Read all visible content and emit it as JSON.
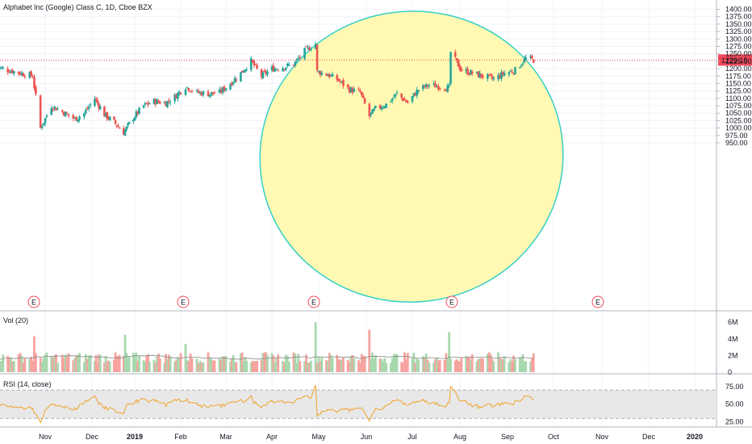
{
  "chart_data": {
    "type": "candlestick",
    "title": "Alphabet Inc (Google) Class C, 1D, Cboe BZX",
    "price_axis": {
      "ticks": [
        950,
        975,
        1000,
        1025,
        1050,
        1075,
        1100,
        1125,
        1150,
        1175,
        1200,
        1225,
        1250,
        1275,
        1300,
        1325,
        1350,
        1375,
        1400
      ],
      "tick_labels": [
        "950.00",
        "975.00",
        "1000.00",
        "1025.00",
        "1050.00",
        "1075.00",
        "1100.00",
        "1125.00",
        "1150.00",
        "1175.00",
        "1200.00",
        "1225.00",
        "1250.00",
        "1275.00",
        "1300.00",
        "1325.00",
        "1350.00",
        "1375.00",
        "1400.00"
      ]
    },
    "last_price": 1229.15,
    "last_price_label": "1229.15",
    "x_axis": {
      "labels": [
        "Nov",
        "Dec",
        "2019",
        "Feb",
        "Mar",
        "Apr",
        "May",
        "Jun",
        "Jul",
        "Aug",
        "Sep",
        "Oct",
        "Nov",
        "Dec",
        "2020"
      ],
      "bold": [
        "2019",
        "2020"
      ]
    },
    "earnings_marker": "E",
    "earnings_months": [
      "Oct 2018",
      "Feb 2019",
      "Apr 2019",
      "Jul 2019",
      "Oct 2019"
    ],
    "close_anchors": [
      [
        "2018-10-24",
        1175
      ],
      [
        "2018-10-29",
        1000
      ],
      [
        "2018-11-05",
        1075
      ],
      [
        "2018-11-12",
        1055
      ],
      [
        "2018-11-20",
        1030
      ],
      [
        "2018-11-26",
        1050
      ],
      [
        "2018-12-03",
        1100
      ],
      [
        "2018-12-10",
        1045
      ],
      [
        "2018-12-17",
        1020
      ],
      [
        "2018-12-24",
        985
      ],
      [
        "2018-12-31",
        1035
      ],
      [
        "2019-01-07",
        1075
      ],
      [
        "2019-01-14",
        1090
      ],
      [
        "2019-01-22",
        1085
      ],
      [
        "2019-01-28",
        1105
      ],
      [
        "2019-02-04",
        1140
      ],
      [
        "2019-02-11",
        1120
      ],
      [
        "2019-02-19",
        1115
      ],
      [
        "2019-02-25",
        1120
      ],
      [
        "2019-03-04",
        1150
      ],
      [
        "2019-03-11",
        1185
      ],
      [
        "2019-03-18",
        1225
      ],
      [
        "2019-03-25",
        1175
      ],
      [
        "2019-04-01",
        1200
      ],
      [
        "2019-04-08",
        1205
      ],
      [
        "2019-04-15",
        1215
      ],
      [
        "2019-04-22",
        1260
      ],
      [
        "2019-04-29",
        1285
      ],
      [
        "2019-04-30",
        1190
      ],
      [
        "2019-05-07",
        1180
      ],
      [
        "2019-05-14",
        1160
      ],
      [
        "2019-05-21",
        1130
      ],
      [
        "2019-05-28",
        1120
      ],
      [
        "2019-06-03",
        1040
      ],
      [
        "2019-06-07",
        1065
      ],
      [
        "2019-06-14",
        1080
      ],
      [
        "2019-06-21",
        1115
      ],
      [
        "2019-06-28",
        1085
      ],
      [
        "2019-07-05",
        1130
      ],
      [
        "2019-07-12",
        1145
      ],
      [
        "2019-07-19",
        1140
      ],
      [
        "2019-07-25",
        1135
      ],
      [
        "2019-07-26",
        1255
      ],
      [
        "2019-08-02",
        1195
      ],
      [
        "2019-08-09",
        1185
      ],
      [
        "2019-08-16",
        1175
      ],
      [
        "2019-08-23",
        1165
      ],
      [
        "2019-08-30",
        1185
      ],
      [
        "2019-09-06",
        1195
      ],
      [
        "2019-09-13",
        1235
      ],
      [
        "2019-09-18",
        1229
      ]
    ],
    "volume": {
      "label": "Vol (20)",
      "ticks": [
        "0",
        "2M",
        "4M",
        "6M"
      ],
      "spikes": [
        [
          "2019-04-30",
          6.0
        ],
        [
          "2019-06-03",
          5.1
        ],
        [
          "2019-07-26",
          4.8
        ],
        [
          "2018-12-26",
          4.5
        ],
        [
          "2019-02-05",
          3.4
        ],
        [
          "2018-10-26",
          4.3
        ]
      ]
    },
    "rsi": {
      "label": "RSI (14, close)",
      "ticks": [
        "25.00",
        "50.00",
        "75.00"
      ],
      "band": [
        30,
        70
      ],
      "range": [
        20,
        85
      ]
    },
    "colors": {
      "up": "#26a69a",
      "down": "#ef5350",
      "up_fill": "#a8d8ae",
      "down_fill": "#f7a39f",
      "ellipse_fill": "#fff9b0",
      "ellipse_stroke": "#35d0c8",
      "price_line": "#f0495a",
      "rsi_line": "#f0a328",
      "rsi_band": "#e8e8e8",
      "vol_ma": "#888888",
      "grid": "#f0f3fa"
    }
  }
}
